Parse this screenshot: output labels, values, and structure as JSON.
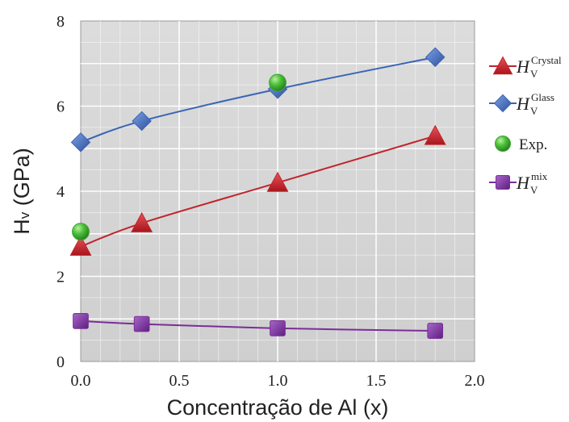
{
  "chart_data": {
    "type": "scatter",
    "title": "",
    "xlabel": "Concentração de Al (x)",
    "ylabel": {
      "main": "H",
      "sub": "v",
      "rest": " (GPa)"
    },
    "xlim": [
      0.0,
      2.0
    ],
    "ylim": [
      0,
      8
    ],
    "x_ticks": [
      "0.0",
      "0.5",
      "1.0",
      "1.5",
      "2.0"
    ],
    "y_ticks": [
      "0",
      "2",
      "4",
      "6",
      "8"
    ],
    "grid": true,
    "legend_position": "right",
    "series": [
      {
        "name": {
          "main": "H",
          "sub": "V",
          "sup": "Crystal"
        },
        "marker": "triangle",
        "color": "#c0252b",
        "line": true,
        "x": [
          0.0,
          0.31,
          1.0,
          1.8
        ],
        "y": [
          2.7,
          3.25,
          4.2,
          5.3
        ]
      },
      {
        "name": {
          "main": "H",
          "sub": "V",
          "sup": "Glass"
        },
        "marker": "diamond",
        "color": "#3a64b5",
        "line": true,
        "x": [
          0.0,
          0.31,
          1.0,
          1.8
        ],
        "y": [
          5.15,
          5.65,
          6.4,
          7.15
        ]
      },
      {
        "name": {
          "main": "Exp."
        },
        "marker": "circle",
        "color": "#3ea632",
        "line": false,
        "x": [
          0.0,
          1.0
        ],
        "y": [
          3.05,
          6.55
        ]
      },
      {
        "name": {
          "main": "H",
          "sub": "V",
          "sup": "mix"
        },
        "marker": "square",
        "color": "#7b2d9a",
        "line": true,
        "x": [
          0.0,
          0.31,
          1.0,
          1.8
        ],
        "y": [
          0.95,
          0.88,
          0.78,
          0.72
        ]
      }
    ]
  }
}
